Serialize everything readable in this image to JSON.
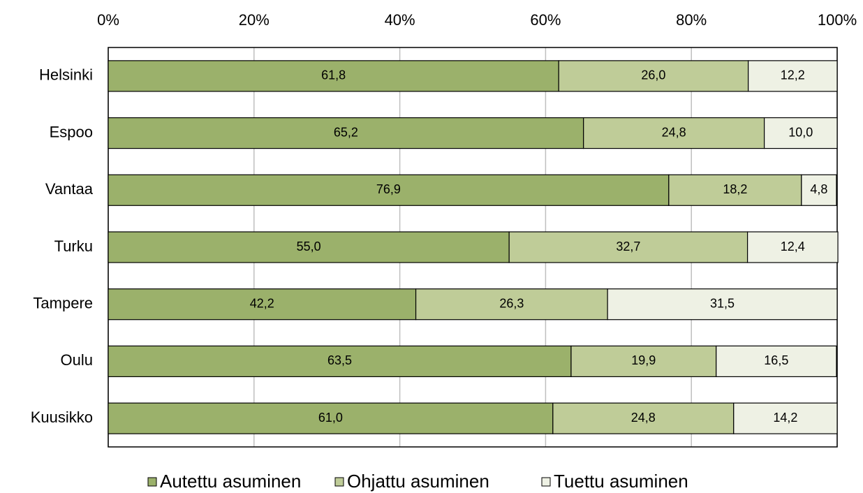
{
  "chart_data": {
    "type": "bar",
    "orientation": "horizontal",
    "stacked": true,
    "categories": [
      "Helsinki",
      "Espoo",
      "Vantaa",
      "Turku",
      "Tampere",
      "Oulu",
      "Kuusikko"
    ],
    "series": [
      {
        "name": "Autettu asuminen",
        "color": "#9bb16b",
        "values": [
          61.8,
          65.2,
          76.9,
          55.0,
          42.2,
          63.5,
          61.0
        ],
        "value_labels": [
          "61,8",
          "65,2",
          "76,9",
          "55,0",
          "42,2",
          "63,5",
          "61,0"
        ]
      },
      {
        "name": "Ohjattu asuminen",
        "color": "#bfcc98",
        "values": [
          26.0,
          24.8,
          18.2,
          32.7,
          26.3,
          19.9,
          24.8
        ],
        "value_labels": [
          "26,0",
          "24,8",
          "18,2",
          "32,7",
          "26,3",
          "19,9",
          "24,8"
        ]
      },
      {
        "name": "Tuettu asuminen",
        "color": "#eef1e4",
        "values": [
          12.2,
          10.0,
          4.8,
          12.4,
          31.5,
          16.5,
          14.2
        ],
        "value_labels": [
          "12,2",
          "10,0",
          "4,8",
          "12,4",
          "31,5",
          "16,5",
          "14,2"
        ]
      }
    ],
    "xlim": [
      0,
      100
    ],
    "xticks": [
      {
        "value": 0,
        "label": "0%"
      },
      {
        "value": 20,
        "label": "20%"
      },
      {
        "value": 40,
        "label": "40%"
      },
      {
        "value": 60,
        "label": "60%"
      },
      {
        "value": 80,
        "label": "80%"
      },
      {
        "value": 100,
        "label": "100%"
      }
    ],
    "grid": true,
    "legend": "bottom"
  }
}
